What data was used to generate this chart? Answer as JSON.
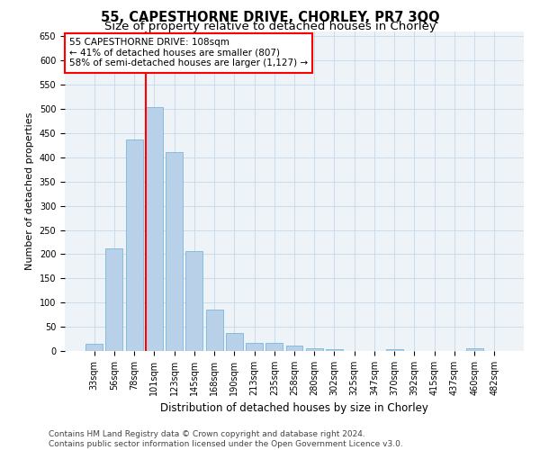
{
  "title": "55, CAPESTHORNE DRIVE, CHORLEY, PR7 3QQ",
  "subtitle": "Size of property relative to detached houses in Chorley",
  "xlabel": "Distribution of detached houses by size in Chorley",
  "ylabel": "Number of detached properties",
  "bins": [
    "33sqm",
    "56sqm",
    "78sqm",
    "101sqm",
    "123sqm",
    "145sqm",
    "168sqm",
    "190sqm",
    "213sqm",
    "235sqm",
    "258sqm",
    "280sqm",
    "302sqm",
    "325sqm",
    "347sqm",
    "370sqm",
    "392sqm",
    "415sqm",
    "437sqm",
    "460sqm",
    "482sqm"
  ],
  "values": [
    15,
    212,
    437,
    503,
    410,
    207,
    85,
    38,
    17,
    17,
    11,
    6,
    4,
    0,
    0,
    4,
    0,
    0,
    0,
    5,
    0
  ],
  "bar_color": "#b8d0e8",
  "bar_edge_color": "#6aaed6",
  "grid_color": "#c5d8ea",
  "background_color": "#eef3f8",
  "vline_x_index": 3,
  "vline_color": "red",
  "annotation_text": "55 CAPESTHORNE DRIVE: 108sqm\n← 41% of detached houses are smaller (807)\n58% of semi-detached houses are larger (1,127) →",
  "annotation_box_facecolor": "white",
  "annotation_box_edgecolor": "red",
  "ylim": [
    0,
    660
  ],
  "yticks": [
    0,
    50,
    100,
    150,
    200,
    250,
    300,
    350,
    400,
    450,
    500,
    550,
    600,
    650
  ],
  "footer_line1": "Contains HM Land Registry data © Crown copyright and database right 2024.",
  "footer_line2": "Contains public sector information licensed under the Open Government Licence v3.0.",
  "title_fontsize": 10.5,
  "subtitle_fontsize": 9.5,
  "xlabel_fontsize": 8.5,
  "ylabel_fontsize": 8,
  "tick_fontsize": 7,
  "annotation_fontsize": 7.5,
  "footer_fontsize": 6.5
}
